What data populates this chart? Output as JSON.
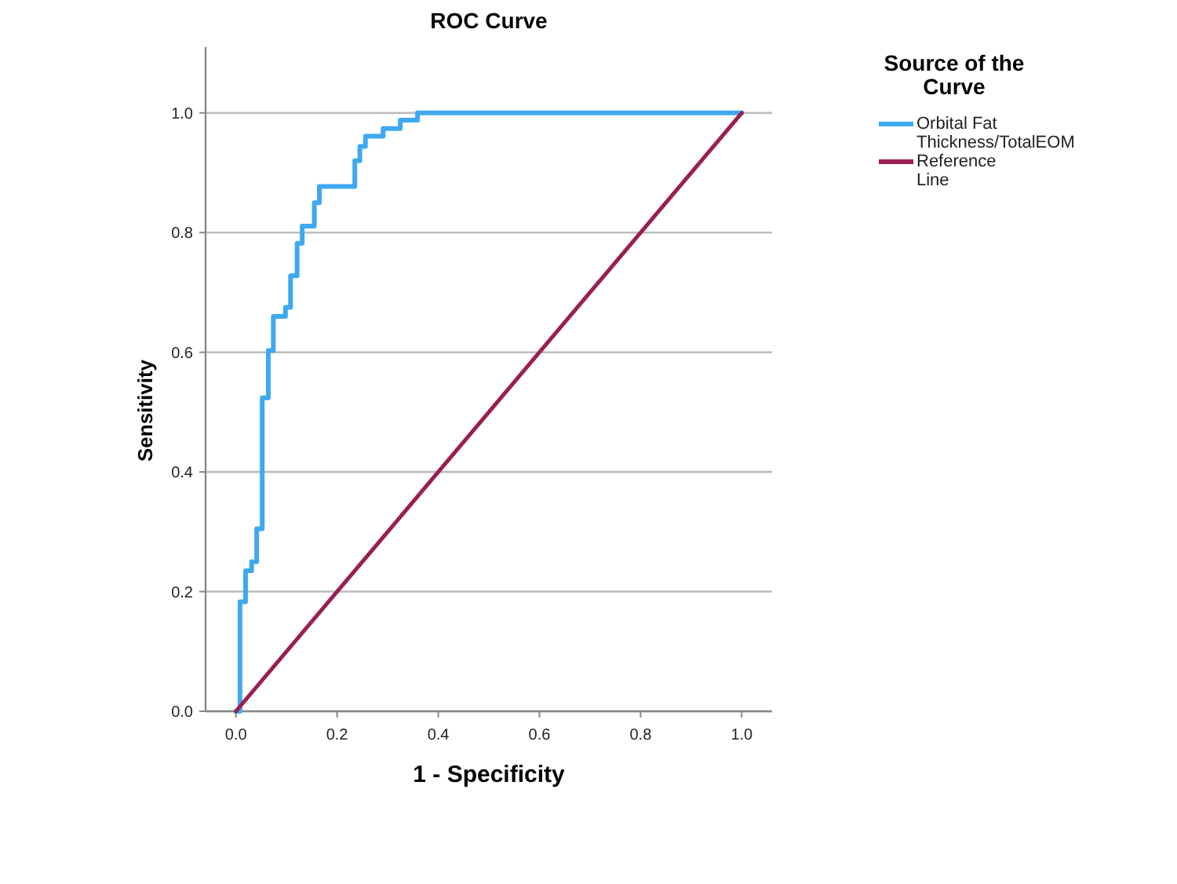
{
  "chart_data": {
    "type": "step",
    "title": "ROC Curve",
    "xlabel": "1 - Specificity",
    "ylabel": "Sensitivity",
    "legend_title": "Source of the Curve",
    "xlim": [
      -0.06,
      1.06
    ],
    "ylim": [
      0,
      1.11
    ],
    "xticks": [
      {
        "value": 0,
        "label": "0.0"
      },
      0.2,
      0.4,
      0.6,
      0.8,
      {
        "value": 1,
        "label": "1.0"
      }
    ],
    "yticks": [
      {
        "value": 0,
        "label": "0.0"
      },
      0.2,
      0.4,
      0.6,
      0.8,
      {
        "value": 1,
        "label": "1.0"
      }
    ],
    "grid": "y",
    "legend": "top right",
    "series": [
      {
        "name": "Orbital Fat Thickness/TotalEOM",
        "color": "#3ea9f0",
        "x": [
          0,
          0.008,
          0.019,
          0.031,
          0.041,
          0.052,
          0.064,
          0.074,
          0.098,
          0.108,
          0.121,
          0.131,
          0.155,
          0.165,
          0.235,
          0.245,
          0.256,
          0.291,
          0.325,
          0.359,
          1
        ],
        "values": [
          0,
          0.183,
          0.235,
          0.25,
          0.305,
          0.524,
          0.603,
          0.66,
          0.675,
          0.728,
          0.782,
          0.811,
          0.85,
          0.877,
          0.92,
          0.944,
          0.961,
          0.974,
          0.988,
          1,
          1
        ]
      },
      {
        "name": "Reference Line",
        "type": "line",
        "color": "#9a1f52",
        "x": [
          0,
          1
        ],
        "values": [
          0,
          1
        ]
      }
    ]
  }
}
